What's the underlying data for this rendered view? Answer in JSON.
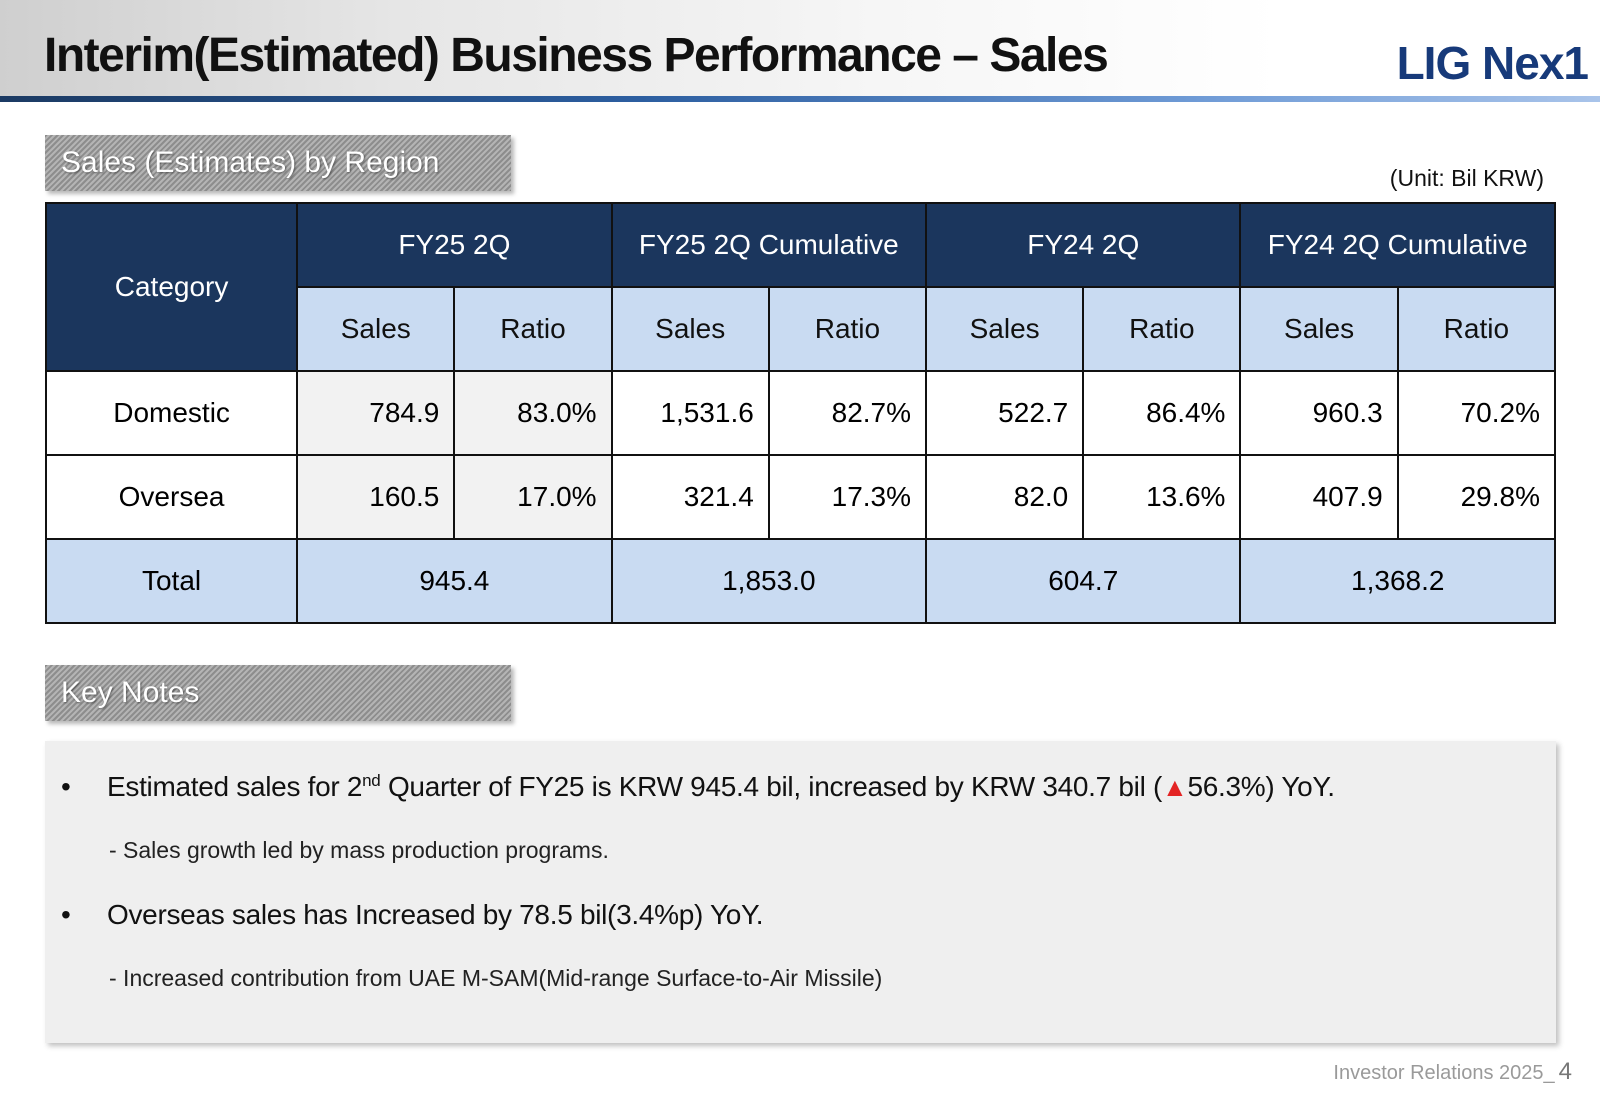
{
  "header": {
    "title": "Interim(Estimated) Business Performance – Sales",
    "logo": "LIG Nex1"
  },
  "region_section": {
    "label": "Sales (Estimates) by Region",
    "unit": "(Unit: Bil KRW)"
  },
  "table": {
    "category_header": "Category",
    "period_headers": [
      "FY25 2Q",
      "FY25 2Q Cumulative",
      "FY24 2Q",
      "FY24 2Q Cumulative"
    ],
    "sub_headers": [
      "Sales",
      "Ratio",
      "Sales",
      "Ratio",
      "Sales",
      "Ratio",
      "Sales",
      "Ratio"
    ],
    "rows": [
      {
        "category": "Domestic",
        "values": [
          "784.9",
          "83.0%",
          "1,531.6",
          "82.7%",
          "522.7",
          "86.4%",
          "960.3",
          "70.2%"
        ]
      },
      {
        "category": "Oversea",
        "values": [
          "160.5",
          "17.0%",
          "321.4",
          "17.3%",
          "82.0",
          "13.6%",
          "407.9",
          "29.8%"
        ]
      }
    ],
    "total": {
      "category": "Total",
      "values": [
        "945.4",
        "1,853.0",
        "604.7",
        "1,368.2"
      ]
    }
  },
  "notes_section": {
    "label": "Key Notes",
    "bullet_1": {
      "part_a": "Estimated sales for 2",
      "superscript": "nd",
      "part_b": " Quarter of FY25 is KRW 945.4 bil, increased by KRW 340.7 bil (",
      "icon": "up-triangle-icon",
      "icon_color": "#e32424",
      "part_c": "56.3%) YoY."
    },
    "sub_1": "- Sales growth led by mass production programs.",
    "bullet_2": "Overseas sales has Increased by 78.5 bil(3.4%p) YoY.",
    "sub_2": "- Increased contribution from UAE M-SAM(Mid-range Surface-to-Air Missile)"
  },
  "footer": {
    "text": "Investor Relations 2025_",
    "page": "4"
  },
  "colors": {
    "header_dark": "#1b365d",
    "header_light": "#c9dbf2",
    "logo": "#173a7a"
  }
}
